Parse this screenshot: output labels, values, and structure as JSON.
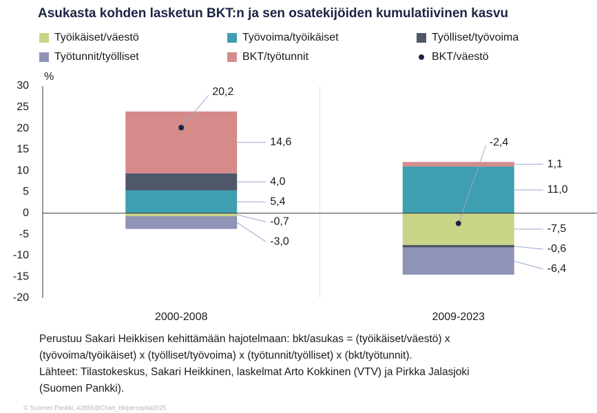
{
  "chart_data": {
    "type": "bar",
    "stacked": true,
    "title": "Asukasta kohden lasketun BKT:n ja sen osatekijöiden kumulatiivinen kasvu",
    "y_label": "%",
    "categories": [
      "2000-2008",
      "2009-2023"
    ],
    "series": [
      {
        "name": "Työikäiset/väestö",
        "color": "#c9d487",
        "values": [
          -0.7,
          -7.5
        ],
        "value_labels": [
          "-0,7",
          "-7,5"
        ]
      },
      {
        "name": "Työvoima/työikäiset",
        "color": "#3e9fb1",
        "values": [
          5.4,
          11.0
        ],
        "value_labels": [
          "5,4",
          "11,0"
        ]
      },
      {
        "name": "Työlliset/työvoima",
        "color": "#4f5869",
        "values": [
          4.0,
          -0.6
        ],
        "value_labels": [
          "4,0",
          "-0,6"
        ]
      },
      {
        "name": "Työtunnit/työlliset",
        "color": "#8f93b6",
        "values": [
          -3.0,
          -6.4
        ],
        "value_labels": [
          "-3,0",
          "-6,4"
        ]
      },
      {
        "name": "BKT/työtunnit",
        "color": "#d48b8a",
        "values": [
          14.6,
          1.1
        ],
        "value_labels": [
          "14,6",
          "1,1"
        ]
      },
      {
        "name": "BKT/väestö",
        "type": "dot",
        "color": "#1b2444",
        "values": [
          20.2,
          -2.4
        ],
        "value_labels": [
          "20,2",
          "-2,4"
        ]
      }
    ],
    "ylim": [
      -20,
      30
    ],
    "yticks": [
      -20,
      -15,
      -10,
      -5,
      0,
      5,
      10,
      15,
      20,
      25,
      30
    ],
    "grid": false,
    "notes": [
      "Perustuu Sakari Heikkisen kehittämään hajotelmaan: bkt/asukas = (työikäiset/väestö) x",
      "(työvoima/työikäiset) x (työlliset/työvoima) x (työtunnit/työlliset) x (bkt/työtunnit).",
      "Lähteet: Tilastokeskus, Sakari Heikkinen, laskelmat Arto Kokkinen (VTV) ja Pirkka Jalasjoki",
      "(Suomen Pankki)."
    ],
    "source": "© Suomen Pankki, 42856@Chart_bktpercapita2025"
  }
}
